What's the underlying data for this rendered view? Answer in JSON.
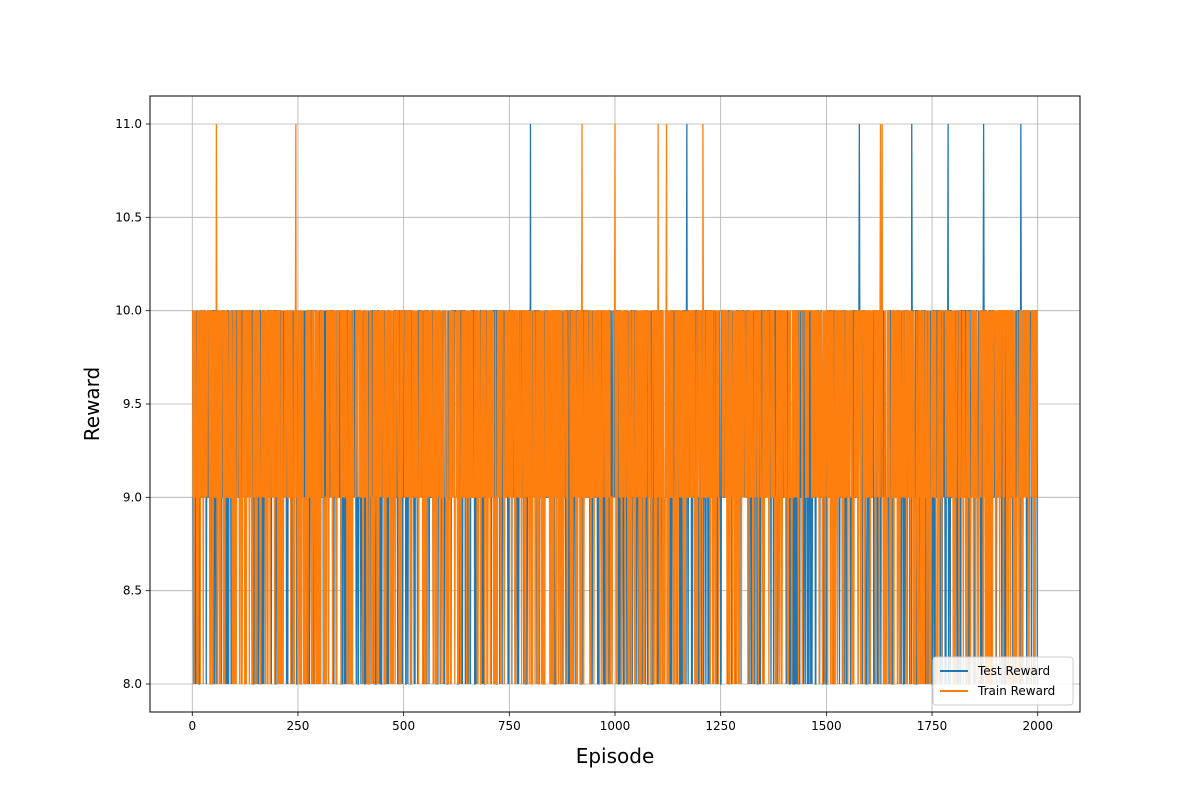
{
  "chart_data": {
    "type": "line",
    "title": "",
    "xlabel": "Episode",
    "ylabel": "Reward",
    "xlim": [
      -100,
      2100
    ],
    "ylim": [
      7.85,
      11.15
    ],
    "xticks": [
      0,
      250,
      500,
      750,
      1000,
      1250,
      1500,
      1750,
      2000
    ],
    "xtick_labels": [
      "0",
      "250",
      "500",
      "750",
      "1000",
      "1250",
      "1500",
      "1750",
      "2000"
    ],
    "yticks": [
      8.0,
      8.5,
      9.0,
      9.5,
      10.0,
      10.5,
      11.0
    ],
    "ytick_labels": [
      "8.0",
      "8.5",
      "9.0",
      "9.5",
      "10.0",
      "10.5",
      "11.0"
    ],
    "grid": true,
    "legend_position": "bottom-right",
    "episodes": 2000,
    "series": [
      {
        "name": "Test Reward",
        "color": "#1f77b4",
        "values_range": [
          8,
          10
        ],
        "spikes_to_11": [
          800,
          1170,
          1578,
          1702,
          1788,
          1872,
          1960
        ]
      },
      {
        "name": "Train Reward",
        "color": "#ff7f0e",
        "values_range": [
          8,
          10
        ],
        "spikes_to_11": [
          57,
          245,
          922,
          1000,
          1102,
          1122,
          1208,
          1628,
          1632
        ]
      }
    ]
  }
}
